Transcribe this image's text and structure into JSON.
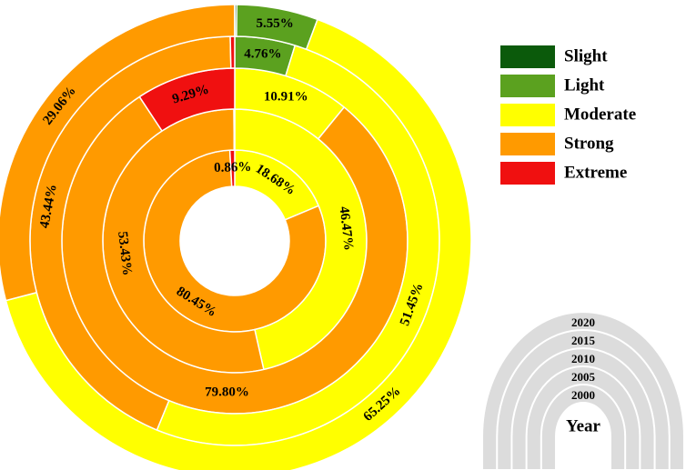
{
  "chart_data": {
    "type": "multi_ring_donut",
    "categories": [
      "2000",
      "2005",
      "2010",
      "2015",
      "2020"
    ],
    "ring_legend_title": "Year",
    "series": [
      {
        "name": "Slight",
        "color": "#0b5a0b",
        "values": [
          0,
          0,
          0,
          0,
          0.14
        ],
        "value_labels": [
          null,
          null,
          null,
          null,
          null
        ]
      },
      {
        "name": "Light",
        "color": "#5ba11f",
        "values": [
          0,
          0,
          0,
          4.76,
          5.55
        ],
        "value_labels": [
          null,
          null,
          null,
          "4.76%",
          "5.55%"
        ]
      },
      {
        "name": "Moderate",
        "color": "#ffff00",
        "values": [
          18.68,
          46.47,
          10.91,
          51.45,
          65.25
        ],
        "value_labels": [
          "18.68%",
          "46.47%",
          "10.91%",
          "51.45%",
          "65.25%"
        ]
      },
      {
        "name": "Strong",
        "color": "#ff9a00",
        "values": [
          80.45,
          53.43,
          79.8,
          43.44,
          29.06
        ],
        "value_labels": [
          "80.45%",
          "53.43%",
          "79.80%",
          "43.44%",
          "29.06%"
        ]
      },
      {
        "name": "Extreme",
        "color": "#f01010",
        "values": [
          0.86,
          0.1,
          9.29,
          0.35,
          0
        ],
        "value_labels": [
          "0.86%",
          null,
          "9.29%",
          null,
          null
        ]
      }
    ]
  }
}
